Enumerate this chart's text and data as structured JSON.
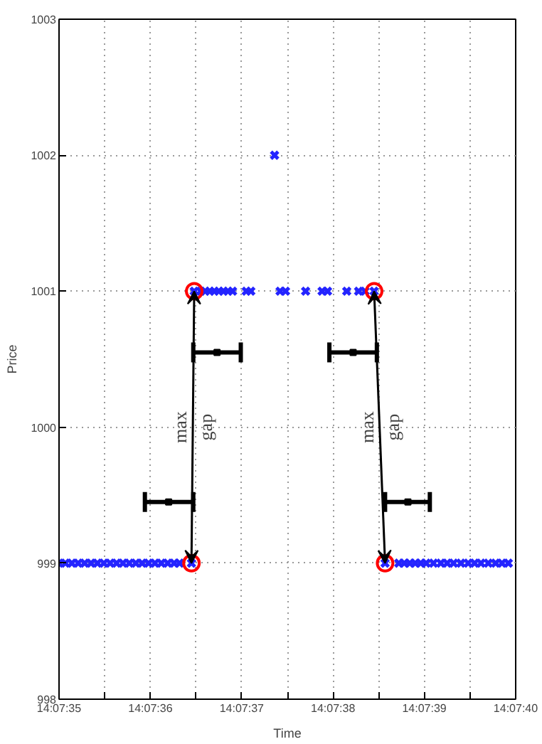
{
  "chart_data": {
    "type": "scatter",
    "xlabel": "Time",
    "ylabel": "Price",
    "xlim": [
      50855,
      50860
    ],
    "ylim": [
      998,
      1003
    ],
    "xticks": [
      {
        "value": 50855,
        "label": "14:07:35"
      },
      {
        "value": 50855.5,
        "label": null
      },
      {
        "value": 50856,
        "label": "14:07:36"
      },
      {
        "value": 50856.5,
        "label": null
      },
      {
        "value": 50857,
        "label": "14:07:37"
      },
      {
        "value": 50857.5,
        "label": null
      },
      {
        "value": 50858,
        "label": "14:07:38"
      },
      {
        "value": 50858.5,
        "label": null
      },
      {
        "value": 50859,
        "label": "14:07:39"
      },
      {
        "value": 50859.5,
        "label": null
      },
      {
        "value": 50860,
        "label": "14:07:40"
      }
    ],
    "yticks": [
      998,
      999,
      1000,
      1001,
      1002,
      1003
    ],
    "grid": true,
    "series": [
      {
        "color": "#2424ff",
        "marker": "cross",
        "x": [
          50855.0,
          50855.07,
          50855.14,
          50855.21,
          50855.28,
          50855.35,
          50855.42,
          50855.49,
          50855.56,
          50855.63,
          50855.7,
          50855.77,
          50855.84,
          50855.91,
          50855.98,
          50856.05,
          50856.12,
          50856.19,
          50856.26,
          50856.32,
          50856.45,
          50856.48,
          50856.55,
          50856.6,
          50856.65,
          50856.7,
          50856.75,
          50856.8,
          50856.85,
          50856.9,
          50857.05,
          50857.1,
          50857.36,
          50857.42,
          50857.48,
          50857.7,
          50857.88,
          50857.94,
          50858.15,
          50858.28,
          50858.35,
          50858.45,
          50858.57,
          50858.72,
          50858.78,
          50858.84,
          50858.9,
          50858.96,
          50859.02,
          50859.1,
          50859.18,
          50859.25,
          50859.32,
          50859.4,
          50859.48,
          50859.55,
          50859.62,
          50859.7,
          50859.78,
          50859.85,
          50859.92
        ],
        "values": [
          999,
          999,
          999,
          999,
          999,
          999,
          999,
          999,
          999,
          999,
          999,
          999,
          999,
          999,
          999,
          999,
          999,
          999,
          999,
          999,
          999,
          1001,
          1001,
          1001,
          1001,
          1001,
          1001,
          1001,
          1001,
          1001,
          1001,
          1001,
          1002,
          1001,
          1001,
          1001,
          1001,
          1001,
          1001,
          1001,
          1001,
          1001,
          999,
          999,
          999,
          999,
          999,
          999,
          999,
          999,
          999,
          999,
          999,
          999,
          999,
          999,
          999,
          999,
          999,
          999,
          999
        ]
      },
      {
        "color": "#ff0000",
        "marker": "circle",
        "x": [
          50856.45,
          50856.48,
          50858.45,
          50858.57
        ],
        "values": [
          999,
          1001,
          1001,
          999
        ]
      },
      {
        "color": "#000000",
        "marker": "square",
        "x": [
          50856.2,
          50856.73,
          50858.22,
          50858.82
        ],
        "values": [
          999.45,
          1000.55,
          1000.55,
          999.45
        ],
        "xerrors": [
          [
            50855.94,
            50856.47
          ],
          [
            50856.47,
            50856.99
          ],
          [
            50857.96,
            50858.48
          ],
          [
            50858.57,
            50859.06
          ]
        ]
      }
    ],
    "annotations": [
      "max\ngap",
      "max\ngap"
    ]
  }
}
